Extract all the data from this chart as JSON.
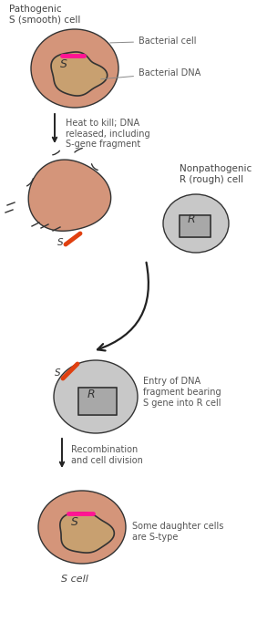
{
  "bg_color": "#ffffff",
  "salmon_color": "#D4957A",
  "gray_color": "#C8C8C8",
  "nucleus_salmon": "#c8a070",
  "nucleus_gray": "#a8a8a8",
  "dna_outline": "#333333",
  "pink": "#FF1493",
  "orange": "#E04010",
  "arrow_color": "#222222",
  "text_color": "#555555",
  "label_color": "#444444",
  "step1_label": "Pathogenic\nS (smooth) cell",
  "step2_label": "Heat to kill; DNA\nreleased, including\nS-gene fragment",
  "step3_label": "Nonpathogenic\nR (rough) cell",
  "step4_label": "Entry of DNA\nfragment bearing\nS gene into R cell",
  "step5_label": "Recombination\nand cell division",
  "step6_label": "Some daughter cells\nare S-type",
  "step7_label": "S cell",
  "bcell_label": "Bacterial cell",
  "bdna_label": "Bacterial DNA"
}
